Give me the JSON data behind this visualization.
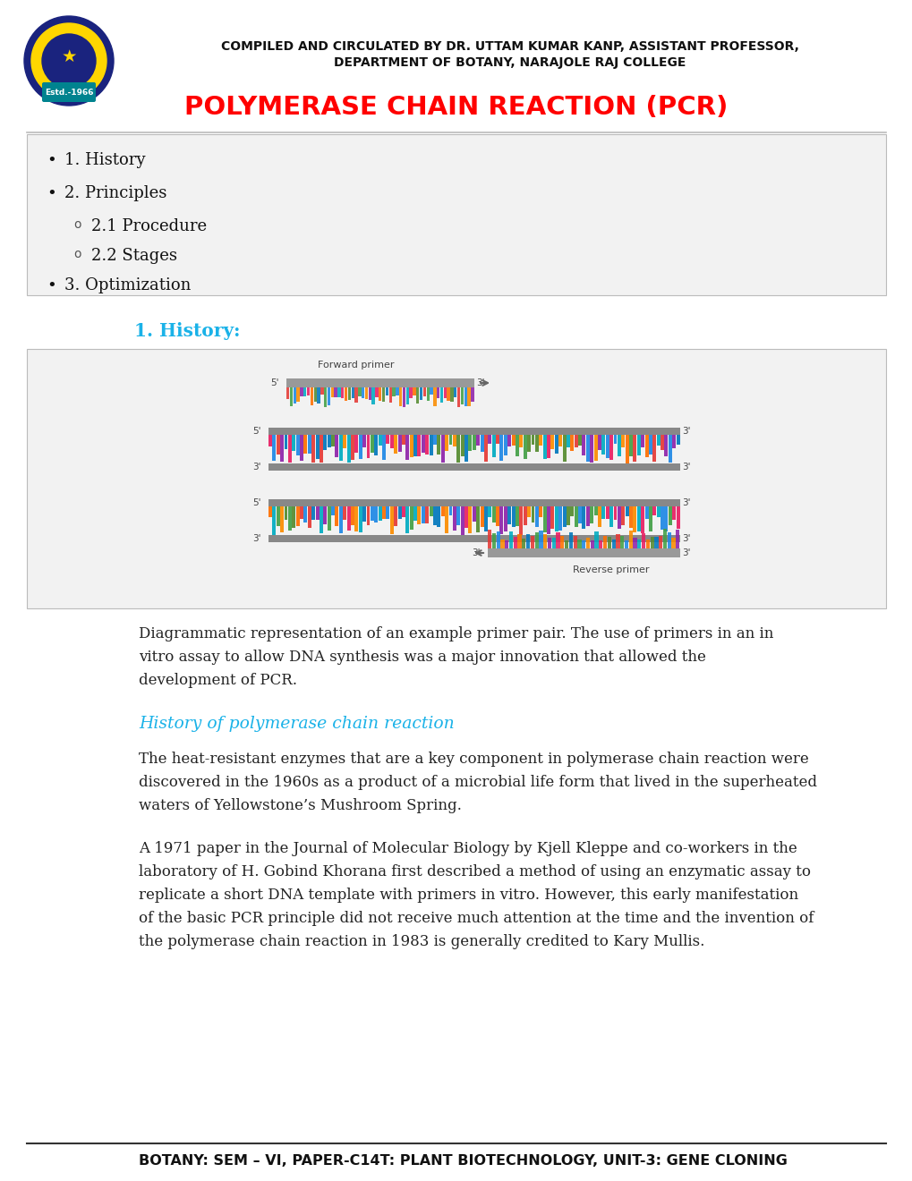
{
  "background_color": "#ffffff",
  "header_text_line1": "COMPILED AND CIRCULATED BY DR. UTTAM KUMAR KANP, ASSISTANT PROFESSOR,",
  "header_text_line2": "DEPARTMENT OF BOTANY, NARAJOLE RAJ COLLEGE",
  "title": "POLYMERASE CHAIN REACTION (PCR)",
  "title_color": "#ff0000",
  "divider_color": "#bbbbbb",
  "toc_bg_color": "#f2f2f2",
  "toc_items": [
    {
      "level": 1,
      "text": "1. History"
    },
    {
      "level": 1,
      "text": "2. Principles"
    },
    {
      "level": 2,
      "text": "2.1 Procedure"
    },
    {
      "level": 2,
      "text": "2.2 Stages"
    },
    {
      "level": 1,
      "text": "3. Optimization"
    }
  ],
  "section1_heading": "1. History:",
  "section1_heading_color": "#1ab2e8",
  "caption_text": "Diagrammatic representation of an example primer pair. The use of primers in an in\nvitro assay to allow DNA synthesis was a major innovation that allowed the\ndevelopment of PCR.",
  "subheading": "History of polymerase chain reaction",
  "subheading_color": "#1ab2e8",
  "para1": "The heat-resistant enzymes that are a key component in polymerase chain reaction were\ndiscovered in the 1960s as a product of a microbial life form that lived in the superheated\nwaters of Yellowstone’s Mushroom Spring.",
  "para2_line1": "A 1971 paper in the Journal of Molecular Biology by Kjell Kleppe and co-workers in the",
  "para2_line2": "laboratory of H. Gobind Khorana first described a method of using an enzymatic assay to",
  "para2_line3": "replicate a short DNA template with primers in vitro. However, this early manifestation",
  "para2_line4": "of the basic PCR principle did not receive much attention at the time and the invention of",
  "para2_line5": "the polymerase chain reaction in 1983 is generally credited to Kary Mullis.",
  "footer_text": "BOTANY: SEM – VI, PAPER-C14T: PLANT BIOTECHNOLOGY, UNIT-3: GENE CLONING"
}
